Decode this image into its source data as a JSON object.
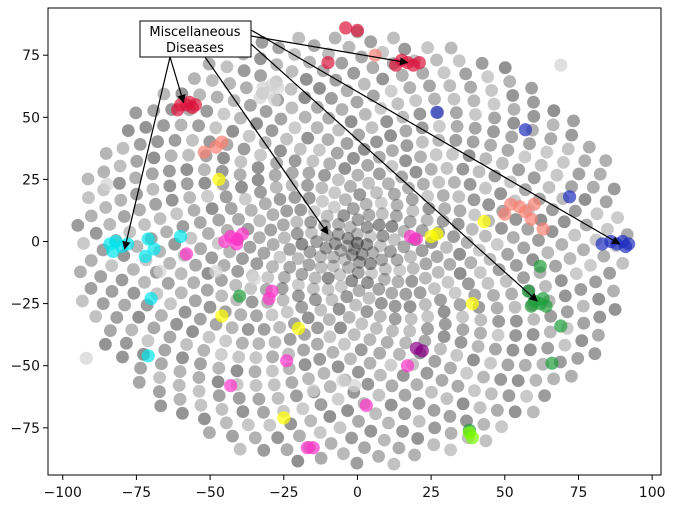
{
  "chart_data": {
    "type": "scatter",
    "title": "",
    "xlabel": "",
    "ylabel": "",
    "xlim": [
      -105,
      103
    ],
    "ylim": [
      -94,
      94
    ],
    "x_ticks": [
      -100,
      -75,
      -50,
      -25,
      0,
      25,
      50,
      75,
      100
    ],
    "y_ticks": [
      -75,
      -50,
      -25,
      0,
      25,
      50,
      75
    ],
    "x_tick_labels": [
      "−100",
      "−75",
      "−50",
      "−25",
      "0",
      "25",
      "50",
      "75",
      "100"
    ],
    "y_tick_labels": [
      "−75",
      "−50",
      "−25",
      "0",
      "25",
      "50",
      "75"
    ],
    "grid": false,
    "legend": "none",
    "background_cluster": {
      "color": "#000000",
      "opacity": 0.35,
      "description_center": [
        -2,
        -3
      ],
      "radius_data": 90
    },
    "series": [
      {
        "color": "#dc143c",
        "points": [
          [
            -60,
            55
          ],
          [
            -58,
            55
          ],
          [
            -56,
            54
          ],
          [
            -61,
            53
          ],
          [
            -57,
            56
          ],
          [
            -55,
            55
          ],
          [
            17,
            72
          ],
          [
            19,
            71
          ],
          [
            15,
            73
          ],
          [
            21,
            72
          ],
          [
            13,
            71
          ],
          [
            -4,
            86
          ],
          [
            0,
            85
          ],
          [
            -10,
            72
          ]
        ]
      },
      {
        "color": "#00e5ee",
        "points": [
          [
            -84,
            -1
          ],
          [
            -82,
            0
          ],
          [
            -80,
            -2
          ],
          [
            -83,
            -4
          ],
          [
            -78,
            -1
          ],
          [
            -71,
            1
          ],
          [
            -69,
            -3
          ],
          [
            -70,
            -23
          ],
          [
            -72,
            -6
          ],
          [
            -60,
            2
          ],
          [
            -71,
            -46
          ]
        ]
      },
      {
        "color": "#1f2fbf",
        "points": [
          [
            88,
            -1
          ],
          [
            90,
            0
          ],
          [
            92,
            -1
          ],
          [
            86,
            0
          ],
          [
            91,
            -2
          ],
          [
            83,
            -1
          ],
          [
            72,
            18
          ],
          [
            57,
            45
          ],
          [
            27,
            52
          ]
        ]
      },
      {
        "color": "#1e9e3a",
        "points": [
          [
            60,
            -24
          ],
          [
            62,
            -25
          ],
          [
            64,
            -26
          ],
          [
            59,
            -26
          ],
          [
            63,
            -23
          ],
          [
            66,
            -49
          ],
          [
            69,
            -34
          ],
          [
            62,
            -10
          ],
          [
            58,
            -20
          ],
          [
            -40,
            -22
          ],
          [
            38,
            -76
          ]
        ]
      },
      {
        "color": "#ff33cc",
        "points": [
          [
            -43,
            2
          ],
          [
            -41,
            1
          ],
          [
            -39,
            3
          ],
          [
            -45,
            0
          ],
          [
            -41,
            -1
          ],
          [
            -58,
            -5
          ],
          [
            -43,
            -58
          ],
          [
            -29,
            -20
          ],
          [
            -24,
            -48
          ],
          [
            -17,
            -83
          ],
          [
            -15,
            -83
          ],
          [
            18,
            2
          ],
          [
            20,
            1
          ],
          [
            3,
            -66
          ],
          [
            -30,
            -23
          ],
          [
            17,
            -50
          ]
        ]
      },
      {
        "color": "#ffff00",
        "points": [
          [
            25,
            2
          ],
          [
            27,
            3
          ],
          [
            -47,
            25
          ],
          [
            -25,
            -71
          ],
          [
            43,
            8
          ],
          [
            39,
            -25
          ],
          [
            -46,
            -30
          ],
          [
            -20,
            -35
          ]
        ]
      },
      {
        "color": "#fa8072",
        "points": [
          [
            52,
            15
          ],
          [
            55,
            14
          ],
          [
            57,
            12
          ],
          [
            60,
            15
          ],
          [
            50,
            11
          ],
          [
            59,
            9
          ],
          [
            63,
            5
          ],
          [
            -48,
            38
          ],
          [
            -46,
            40
          ],
          [
            -52,
            36
          ],
          [
            6,
            75
          ]
        ]
      },
      {
        "color": "#7cfc00",
        "points": [
          [
            38,
            -77
          ],
          [
            39,
            -79
          ]
        ]
      },
      {
        "color": "#8b008b",
        "points": [
          [
            20,
            -43
          ],
          [
            22,
            -44
          ]
        ]
      },
      {
        "color": "#d3d3d3",
        "points": [
          [
            -92,
            -47
          ],
          [
            -85,
            23
          ],
          [
            -67,
            -12
          ],
          [
            -32,
            62
          ],
          [
            -30,
            60
          ],
          [
            -29,
            63
          ],
          [
            -27,
            62
          ],
          [
            -33,
            58
          ],
          [
            -28,
            57
          ],
          [
            69,
            71
          ],
          [
            -48,
            -12
          ],
          [
            -35,
            -15
          ],
          [
            -1,
            -58
          ],
          [
            -5,
            -56
          ],
          [
            -15,
            -60
          ]
        ]
      }
    ]
  },
  "annotation": {
    "line1": "Miscellaneous",
    "line2": "Diseases",
    "targets": [
      [
        -79,
        -3
      ],
      [
        -59,
        56
      ],
      [
        17,
        72
      ],
      [
        -10,
        3
      ],
      [
        61,
        -24
      ],
      [
        89,
        -1
      ]
    ]
  }
}
